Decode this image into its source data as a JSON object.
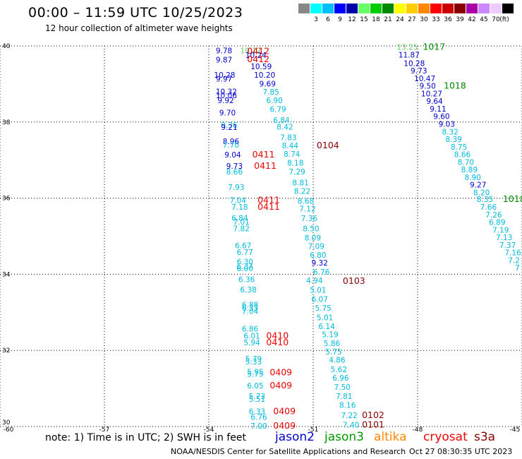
{
  "title": "00:00 – 11:59 UTC 10/25/2023",
  "subtitle": "12 hour collection of altimeter wave heights",
  "legend": {
    "unit": "(ft)",
    "bins": [
      {
        "color": "#888888",
        "label": ""
      },
      {
        "color": "#00ffff",
        "label": "3"
      },
      {
        "color": "#00bfff",
        "label": "6"
      },
      {
        "color": "#0000ff",
        "label": "9"
      },
      {
        "color": "#0000aa",
        "label": "12"
      },
      {
        "color": "#66ff66",
        "label": "15"
      },
      {
        "color": "#00cc00",
        "label": "18"
      },
      {
        "color": "#008800",
        "label": "21"
      },
      {
        "color": "#ffff00",
        "label": "24"
      },
      {
        "color": "#ffcc00",
        "label": "27"
      },
      {
        "color": "#ff8800",
        "label": "30"
      },
      {
        "color": "#ff0000",
        "label": "33"
      },
      {
        "color": "#cc0000",
        "label": "36"
      },
      {
        "color": "#880000",
        "label": "39"
      },
      {
        "color": "#aa00aa",
        "label": "42"
      },
      {
        "color": "#cc88ff",
        "label": "45"
      },
      {
        "color": "#eeccff",
        "label": "70"
      },
      {
        "color": "#000000",
        "label": ""
      }
    ]
  },
  "axes": {
    "lon_ticks": [
      "-60",
      "-57",
      "-54",
      "-51",
      "-48",
      "-45"
    ],
    "lat_ticks": [
      "40",
      "38",
      "36",
      "34",
      "32",
      "30"
    ]
  },
  "note": "note: 1) Time is in UTC; 2) SWH is in feet",
  "satellites": [
    {
      "name": "jason2",
      "color": "#0000cc"
    },
    {
      "name": "jason3",
      "color": "#009900"
    },
    {
      "name": "altika",
      "color": "#ff8800"
    },
    {
      "name": "cryosat",
      "color": "#ee0000"
    },
    {
      "name": "s3a",
      "color": "#880000"
    }
  ],
  "footer_left": "NOAA/NESDIS Center for Satellite Applications and Research",
  "footer_right": "Oct 27 08:30:35 UTC 2023",
  "colors": {
    "c1": "#00bbdd",
    "c2": "#0000cc",
    "c3": "#1a9bd6",
    "c4": "#66cc66",
    "red": "#ee0000",
    "dred": "#880000",
    "green": "#008800"
  },
  "map_labels": [
    {
      "t": "9.78",
      "lon": -53.8,
      "lat": 39.88,
      "c": "c2"
    },
    {
      "t": "10.12",
      "lon": -53.1,
      "lat": 39.88,
      "c": "c4"
    },
    {
      "t": "0412",
      "lon": -52.9,
      "lat": 39.86,
      "c": "red",
      "big": 1
    },
    {
      "t": "9.87",
      "lon": -53.8,
      "lat": 39.64,
      "c": "c2"
    },
    {
      "t": "10.24",
      "lon": -52.95,
      "lat": 39.76,
      "c": "c2"
    },
    {
      "t": "0412",
      "lon": -52.9,
      "lat": 39.65,
      "c": "red",
      "big": 1
    },
    {
      "t": "10.59",
      "lon": -52.8,
      "lat": 39.46,
      "c": "c2"
    },
    {
      "t": "10.28",
      "lon": -53.85,
      "lat": 39.24,
      "c": "c2"
    },
    {
      "t": "10.20",
      "lon": -52.7,
      "lat": 39.24,
      "c": "c2"
    },
    {
      "t": "9.97",
      "lon": -53.8,
      "lat": 39.14,
      "c": "c2"
    },
    {
      "t": "9.69",
      "lon": -52.55,
      "lat": 39.01,
      "c": "c2"
    },
    {
      "t": "10.32",
      "lon": -53.8,
      "lat": 38.8,
      "c": "c2"
    },
    {
      "t": "7.85",
      "lon": -52.45,
      "lat": 38.79,
      "c": "c1"
    },
    {
      "t": "10.06",
      "lon": -53.8,
      "lat": 38.7,
      "c": "c2"
    },
    {
      "t": "9.92",
      "lon": -53.75,
      "lat": 38.57,
      "c": "c2"
    },
    {
      "t": "6.90",
      "lon": -52.35,
      "lat": 38.57,
      "c": "c1"
    },
    {
      "t": "6.79",
      "lon": -52.25,
      "lat": 38.34,
      "c": "c1"
    },
    {
      "t": "9.70",
      "lon": -53.7,
      "lat": 38.25,
      "c": "c2"
    },
    {
      "t": "6.84",
      "lon": -52.15,
      "lat": 38.05,
      "c": "c1"
    },
    {
      "t": "9.36",
      "lon": -53.65,
      "lat": 37.92,
      "c": "c1"
    },
    {
      "t": "9.21",
      "lon": -53.65,
      "lat": 37.87,
      "c": "c2"
    },
    {
      "t": "8.42",
      "lon": -52.05,
      "lat": 37.88,
      "c": "c1"
    },
    {
      "t": "7.83",
      "lon": -51.95,
      "lat": 37.6,
      "c": "c1"
    },
    {
      "t": "8.96",
      "lon": -53.6,
      "lat": 37.5,
      "c": "c2"
    },
    {
      "t": "7.70",
      "lon": -53.6,
      "lat": 37.4,
      "c": "c1"
    },
    {
      "t": "8.44",
      "lon": -51.9,
      "lat": 37.38,
      "c": "c1"
    },
    {
      "t": "0104",
      "lon": -50.9,
      "lat": 37.38,
      "c": "dred",
      "big": 1
    },
    {
      "t": "9.04",
      "lon": -53.55,
      "lat": 37.14,
      "c": "c2"
    },
    {
      "t": "0411",
      "lon": -52.75,
      "lat": 37.14,
      "c": "red",
      "big": 1
    },
    {
      "t": "8.74",
      "lon": -51.85,
      "lat": 37.16,
      "c": "c1"
    },
    {
      "t": "8.18",
      "lon": -51.75,
      "lat": 36.93,
      "c": "c1"
    },
    {
      "t": "9.73",
      "lon": -53.5,
      "lat": 36.85,
      "c": "c2"
    },
    {
      "t": "0411",
      "lon": -52.7,
      "lat": 36.85,
      "c": "red",
      "big": 1
    },
    {
      "t": "8.66",
      "lon": -53.5,
      "lat": 36.7,
      "c": "c1"
    },
    {
      "t": "7.29",
      "lon": -51.7,
      "lat": 36.7,
      "c": "c1"
    },
    {
      "t": "8.81",
      "lon": -51.6,
      "lat": 36.41,
      "c": "c1"
    },
    {
      "t": "7.93",
      "lon": -53.45,
      "lat": 36.29,
      "c": "c1"
    },
    {
      "t": "8.22",
      "lon": -51.55,
      "lat": 36.19,
      "c": "c1"
    },
    {
      "t": "7.04",
      "lon": -53.4,
      "lat": 35.95,
      "c": "c1"
    },
    {
      "t": "0411",
      "lon": -52.6,
      "lat": 35.95,
      "c": "red",
      "big": 1
    },
    {
      "t": "8.68",
      "lon": -51.45,
      "lat": 35.93,
      "c": "c1"
    },
    {
      "t": "7.18",
      "lon": -53.35,
      "lat": 35.77,
      "c": "c1"
    },
    {
      "t": "0411",
      "lon": -52.6,
      "lat": 35.77,
      "c": "red",
      "big": 1
    },
    {
      "t": "7.12",
      "lon": -51.4,
      "lat": 35.72,
      "c": "c1"
    },
    {
      "t": "6.84",
      "lon": -53.35,
      "lat": 35.48,
      "c": "c1"
    },
    {
      "t": "7.36",
      "lon": -51.35,
      "lat": 35.47,
      "c": "c1"
    },
    {
      "t": "7.01",
      "lon": -53.3,
      "lat": 35.38,
      "c": "c1"
    },
    {
      "t": "7.82",
      "lon": -53.3,
      "lat": 35.2,
      "c": "c1"
    },
    {
      "t": "8.50",
      "lon": -51.3,
      "lat": 35.2,
      "c": "c1"
    },
    {
      "t": "8.09",
      "lon": -51.25,
      "lat": 34.96,
      "c": "c1"
    },
    {
      "t": "6.67",
      "lon": -53.25,
      "lat": 34.76,
      "c": "c1"
    },
    {
      "t": "7.09",
      "lon": -51.15,
      "lat": 34.74,
      "c": "c1"
    },
    {
      "t": "6.77",
      "lon": -53.2,
      "lat": 34.58,
      "c": "c1"
    },
    {
      "t": "6.80",
      "lon": -51.1,
      "lat": 34.51,
      "c": "c1"
    },
    {
      "t": "6.30",
      "lon": -53.2,
      "lat": 34.33,
      "c": "c1"
    },
    {
      "t": "9.32",
      "lon": -51.05,
      "lat": 34.3,
      "c": "c2"
    },
    {
      "t": "6.37",
      "lon": -53.2,
      "lat": 34.21,
      "c": "c1"
    },
    {
      "t": "6.00",
      "lon": -53.2,
      "lat": 34.16,
      "c": "c1"
    },
    {
      "t": "6.76",
      "lon": -51.0,
      "lat": 34.06,
      "c": "c1"
    },
    {
      "t": "6.36",
      "lon": -53.15,
      "lat": 33.87,
      "c": "c1"
    },
    {
      "t": "4.94",
      "lon": -51.2,
      "lat": 33.84,
      "c": "c1"
    },
    {
      "t": "0103",
      "lon": -50.15,
      "lat": 33.82,
      "c": "dred",
      "big": 1
    },
    {
      "t": "6.38",
      "lon": -53.1,
      "lat": 33.6,
      "c": "c1"
    },
    {
      "t": "5.01",
      "lon": -51.1,
      "lat": 33.59,
      "c": "c1"
    },
    {
      "t": "6.07",
      "lon": -51.05,
      "lat": 33.35,
      "c": "c1"
    },
    {
      "t": "6.88",
      "lon": -53.05,
      "lat": 33.2,
      "c": "c1"
    },
    {
      "t": "6.33",
      "lon": -53.05,
      "lat": 33.12,
      "c": "c1"
    },
    {
      "t": "7.04",
      "lon": -53.05,
      "lat": 33.03,
      "c": "c1"
    },
    {
      "t": "5.75",
      "lon": -50.95,
      "lat": 33.12,
      "c": "c1"
    },
    {
      "t": "5.01",
      "lon": -50.9,
      "lat": 32.87,
      "c": "c1"
    },
    {
      "t": "6.86",
      "lon": -53.05,
      "lat": 32.57,
      "c": "c1"
    },
    {
      "t": "6.14",
      "lon": -50.85,
      "lat": 32.63,
      "c": "c1"
    },
    {
      "t": "6.01",
      "lon": -53.0,
      "lat": 32.38,
      "c": "c1"
    },
    {
      "t": "0410",
      "lon": -52.35,
      "lat": 32.38,
      "c": "red",
      "big": 1
    },
    {
      "t": "5.19",
      "lon": -50.75,
      "lat": 32.42,
      "c": "c1"
    },
    {
      "t": "5.94",
      "lon": -53.0,
      "lat": 32.21,
      "c": "c1"
    },
    {
      "t": "0410",
      "lon": -52.35,
      "lat": 32.21,
      "c": "red",
      "big": 1
    },
    {
      "t": "5.86",
      "lon": -50.7,
      "lat": 32.19,
      "c": "c1"
    },
    {
      "t": "5.75",
      "lon": -50.65,
      "lat": 31.97,
      "c": "c1"
    },
    {
      "t": "5.79",
      "lon": -52.95,
      "lat": 31.78,
      "c": "c1"
    },
    {
      "t": "5.33",
      "lon": -52.95,
      "lat": 31.71,
      "c": "c1"
    },
    {
      "t": "4.86",
      "lon": -50.55,
      "lat": 31.75,
      "c": "c1"
    },
    {
      "t": "5.95",
      "lon": -52.9,
      "lat": 31.44,
      "c": "c1"
    },
    {
      "t": "5.75",
      "lon": -52.9,
      "lat": 31.38,
      "c": "c1"
    },
    {
      "t": "0409",
      "lon": -52.25,
      "lat": 31.42,
      "c": "red",
      "big": 1
    },
    {
      "t": "5.62",
      "lon": -50.5,
      "lat": 31.5,
      "c": "c1"
    },
    {
      "t": "6.96",
      "lon": -50.45,
      "lat": 31.28,
      "c": "c1"
    },
    {
      "t": "6.05",
      "lon": -52.9,
      "lat": 31.08,
      "c": "c1"
    },
    {
      "t": "0409",
      "lon": -52.25,
      "lat": 31.08,
      "c": "red",
      "big": 1
    },
    {
      "t": "7.50",
      "lon": -50.4,
      "lat": 31.04,
      "c": "c1"
    },
    {
      "t": "5.73",
      "lon": -52.85,
      "lat": 30.8,
      "c": "c1"
    },
    {
      "t": "5.51",
      "lon": -52.85,
      "lat": 30.72,
      "c": "c1"
    },
    {
      "t": "7.81",
      "lon": -50.35,
      "lat": 30.8,
      "c": "c1"
    },
    {
      "t": "8.16",
      "lon": -50.25,
      "lat": 30.57,
      "c": "c1"
    },
    {
      "t": "6.33",
      "lon": -52.85,
      "lat": 30.4,
      "c": "c1"
    },
    {
      "t": "0409",
      "lon": -52.15,
      "lat": 30.4,
      "c": "red",
      "big": 1
    },
    {
      "t": "6.76",
      "lon": -52.8,
      "lat": 30.25,
      "c": "c1"
    },
    {
      "t": "7.22",
      "lon": -50.2,
      "lat": 30.3,
      "c": "c1"
    },
    {
      "t": "0102",
      "lon": -49.6,
      "lat": 30.3,
      "c": "dred",
      "big": 1
    },
    {
      "t": "7.00",
      "lon": -52.8,
      "lat": 30.02,
      "c": "c1"
    },
    {
      "t": "0409",
      "lon": -52.15,
      "lat": 30.02,
      "c": "red",
      "big": 1
    },
    {
      "t": "7.40",
      "lon": -50.15,
      "lat": 30.05,
      "c": "c1"
    },
    {
      "t": "0101",
      "lon": -49.6,
      "lat": 30.05,
      "c": "dred",
      "big": 1
    },
    {
      "t": "13.25",
      "lon": -48.6,
      "lat": 39.97,
      "c": "c4"
    },
    {
      "t": "1017",
      "lon": -47.85,
      "lat": 39.97,
      "c": "green",
      "big": 1
    },
    {
      "t": "11.87",
      "lon": -48.55,
      "lat": 39.77,
      "c": "c2"
    },
    {
      "t": "10.28",
      "lon": -48.4,
      "lat": 39.55,
      "c": "c2"
    },
    {
      "t": "9.73",
      "lon": -48.2,
      "lat": 39.35,
      "c": "c2"
    },
    {
      "t": "10.47",
      "lon": -48.1,
      "lat": 39.15,
      "c": "c2"
    },
    {
      "t": "9.50",
      "lon": -47.95,
      "lat": 38.95,
      "c": "c2"
    },
    {
      "t": "1018",
      "lon": -47.25,
      "lat": 38.95,
      "c": "green",
      "big": 1
    },
    {
      "t": "10.27",
      "lon": -47.9,
      "lat": 38.75,
      "c": "c2"
    },
    {
      "t": "9.64",
      "lon": -47.75,
      "lat": 38.55,
      "c": "c2"
    },
    {
      "t": "9.11",
      "lon": -47.65,
      "lat": 38.35,
      "c": "c2"
    },
    {
      "t": "9.60",
      "lon": -47.55,
      "lat": 38.15,
      "c": "c2"
    },
    {
      "t": "9.03",
      "lon": -47.4,
      "lat": 37.95,
      "c": "c2"
    },
    {
      "t": "8.32",
      "lon": -47.3,
      "lat": 37.75,
      "c": "c1"
    },
    {
      "t": "8.39",
      "lon": -47.2,
      "lat": 37.55,
      "c": "c1"
    },
    {
      "t": "8.75",
      "lon": -47.05,
      "lat": 37.35,
      "c": "c1"
    },
    {
      "t": "8.66",
      "lon": -46.95,
      "lat": 37.15,
      "c": "c1"
    },
    {
      "t": "8.70",
      "lon": -46.85,
      "lat": 36.95,
      "c": "c1"
    },
    {
      "t": "8.89",
      "lon": -46.75,
      "lat": 36.75,
      "c": "c1"
    },
    {
      "t": "8.90",
      "lon": -46.65,
      "lat": 36.55,
      "c": "c1"
    },
    {
      "t": "9.27",
      "lon": -46.5,
      "lat": 36.35,
      "c": "c2"
    },
    {
      "t": "8.20",
      "lon": -46.4,
      "lat": 36.15,
      "c": "c1"
    },
    {
      "t": "8.35",
      "lon": -46.3,
      "lat": 35.97,
      "c": "c1"
    },
    {
      "t": "1018",
      "lon": -45.55,
      "lat": 35.97,
      "c": "green",
      "big": 1
    },
    {
      "t": "7.66",
      "lon": -46.2,
      "lat": 35.77,
      "c": "c1"
    },
    {
      "t": "7.26",
      "lon": -46.05,
      "lat": 35.57,
      "c": "c1"
    },
    {
      "t": "6.89",
      "lon": -45.95,
      "lat": 35.37,
      "c": "c1"
    },
    {
      "t": "7.19",
      "lon": -45.85,
      "lat": 35.17,
      "c": "c1"
    },
    {
      "t": "7.13",
      "lon": -45.75,
      "lat": 34.97,
      "c": "c1"
    },
    {
      "t": "7.37",
      "lon": -45.65,
      "lat": 34.77,
      "c": "c1"
    },
    {
      "t": "7.16",
      "lon": -45.5,
      "lat": 34.57,
      "c": "c1"
    },
    {
      "t": "7.2",
      "lon": -45.4,
      "lat": 34.37,
      "c": "c1"
    },
    {
      "t": "7",
      "lon": -45.2,
      "lat": 34.17,
      "c": "c1"
    }
  ]
}
